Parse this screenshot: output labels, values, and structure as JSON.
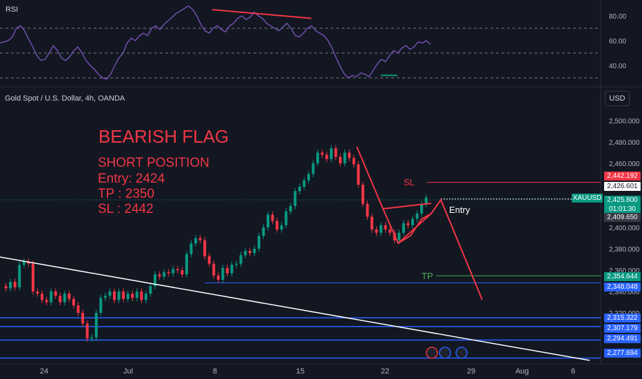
{
  "rsi_label": "RSI",
  "header": {
    "symbol_title": "Gold Spot / U.S. Dollar, 4h, OANDA",
    "currency_button": "USD"
  },
  "annotation": {
    "title": "BEARISH FLAG",
    "line1": "SHORT POSITION",
    "line2": "Entry: 2424",
    "line3": "TP : 2350",
    "line4": "SL : 2442"
  },
  "labels": {
    "sl": "SL",
    "entry": "Entry",
    "tp": "TP"
  },
  "colors": {
    "background": "#131722",
    "up": "#089981",
    "down": "#f23645",
    "annotation_red": "#f23645",
    "tp_green": "#4caf50",
    "level_blue": "#2962ff",
    "rsi_line": "#7e57c2",
    "trendline": "#ffffff"
  },
  "price_badges": [
    {
      "text": "2,442.192",
      "style": "red"
    },
    {
      "text": "2,426.601",
      "style": "white"
    },
    {
      "text": "XAUUSD",
      "style": "green"
    },
    {
      "text": "2,425.800",
      "style": "green"
    },
    {
      "text": "01:01:30",
      "style": "green"
    },
    {
      "text": "2,409.650",
      "style": "gray"
    },
    {
      "text": "2,354.644",
      "style": "green"
    },
    {
      "text": "2,348.048",
      "style": "blue"
    },
    {
      "text": "2,315.322",
      "style": "blue"
    },
    {
      "text": "2,307.179",
      "style": "blue"
    },
    {
      "text": "2,294.491",
      "style": "blue"
    },
    {
      "text": "2,277.694",
      "style": "blue"
    }
  ],
  "chart_data": {
    "type": "candlestick",
    "title": "Gold Spot / U.S. Dollar, 4h, OANDA",
    "y_axis": {
      "ticks": [
        "2,500.000",
        "2,480.000",
        "2,460.000",
        "2,400.000",
        "2,380.000",
        "2,360.000",
        "2,340.000",
        "2,320.000"
      ],
      "range": [
        2270,
        2510
      ]
    },
    "x_axis": {
      "ticks": [
        "24",
        "Jul",
        "8",
        "15",
        "22",
        "29",
        "Aug",
        "6"
      ]
    },
    "rsi": {
      "ticks": [
        "80.00",
        "60.00",
        "40.00"
      ],
      "range": [
        26,
        92
      ],
      "levels": [
        70,
        50,
        30
      ]
    },
    "horizontal_levels": [
      2277.694,
      2294.491,
      2307.179,
      2315.322,
      2348.048,
      2354.644,
      2442.192,
      2425.8
    ],
    "events": [
      "flash-icon",
      "us-flag-icon",
      "us-flag-icon"
    ]
  }
}
